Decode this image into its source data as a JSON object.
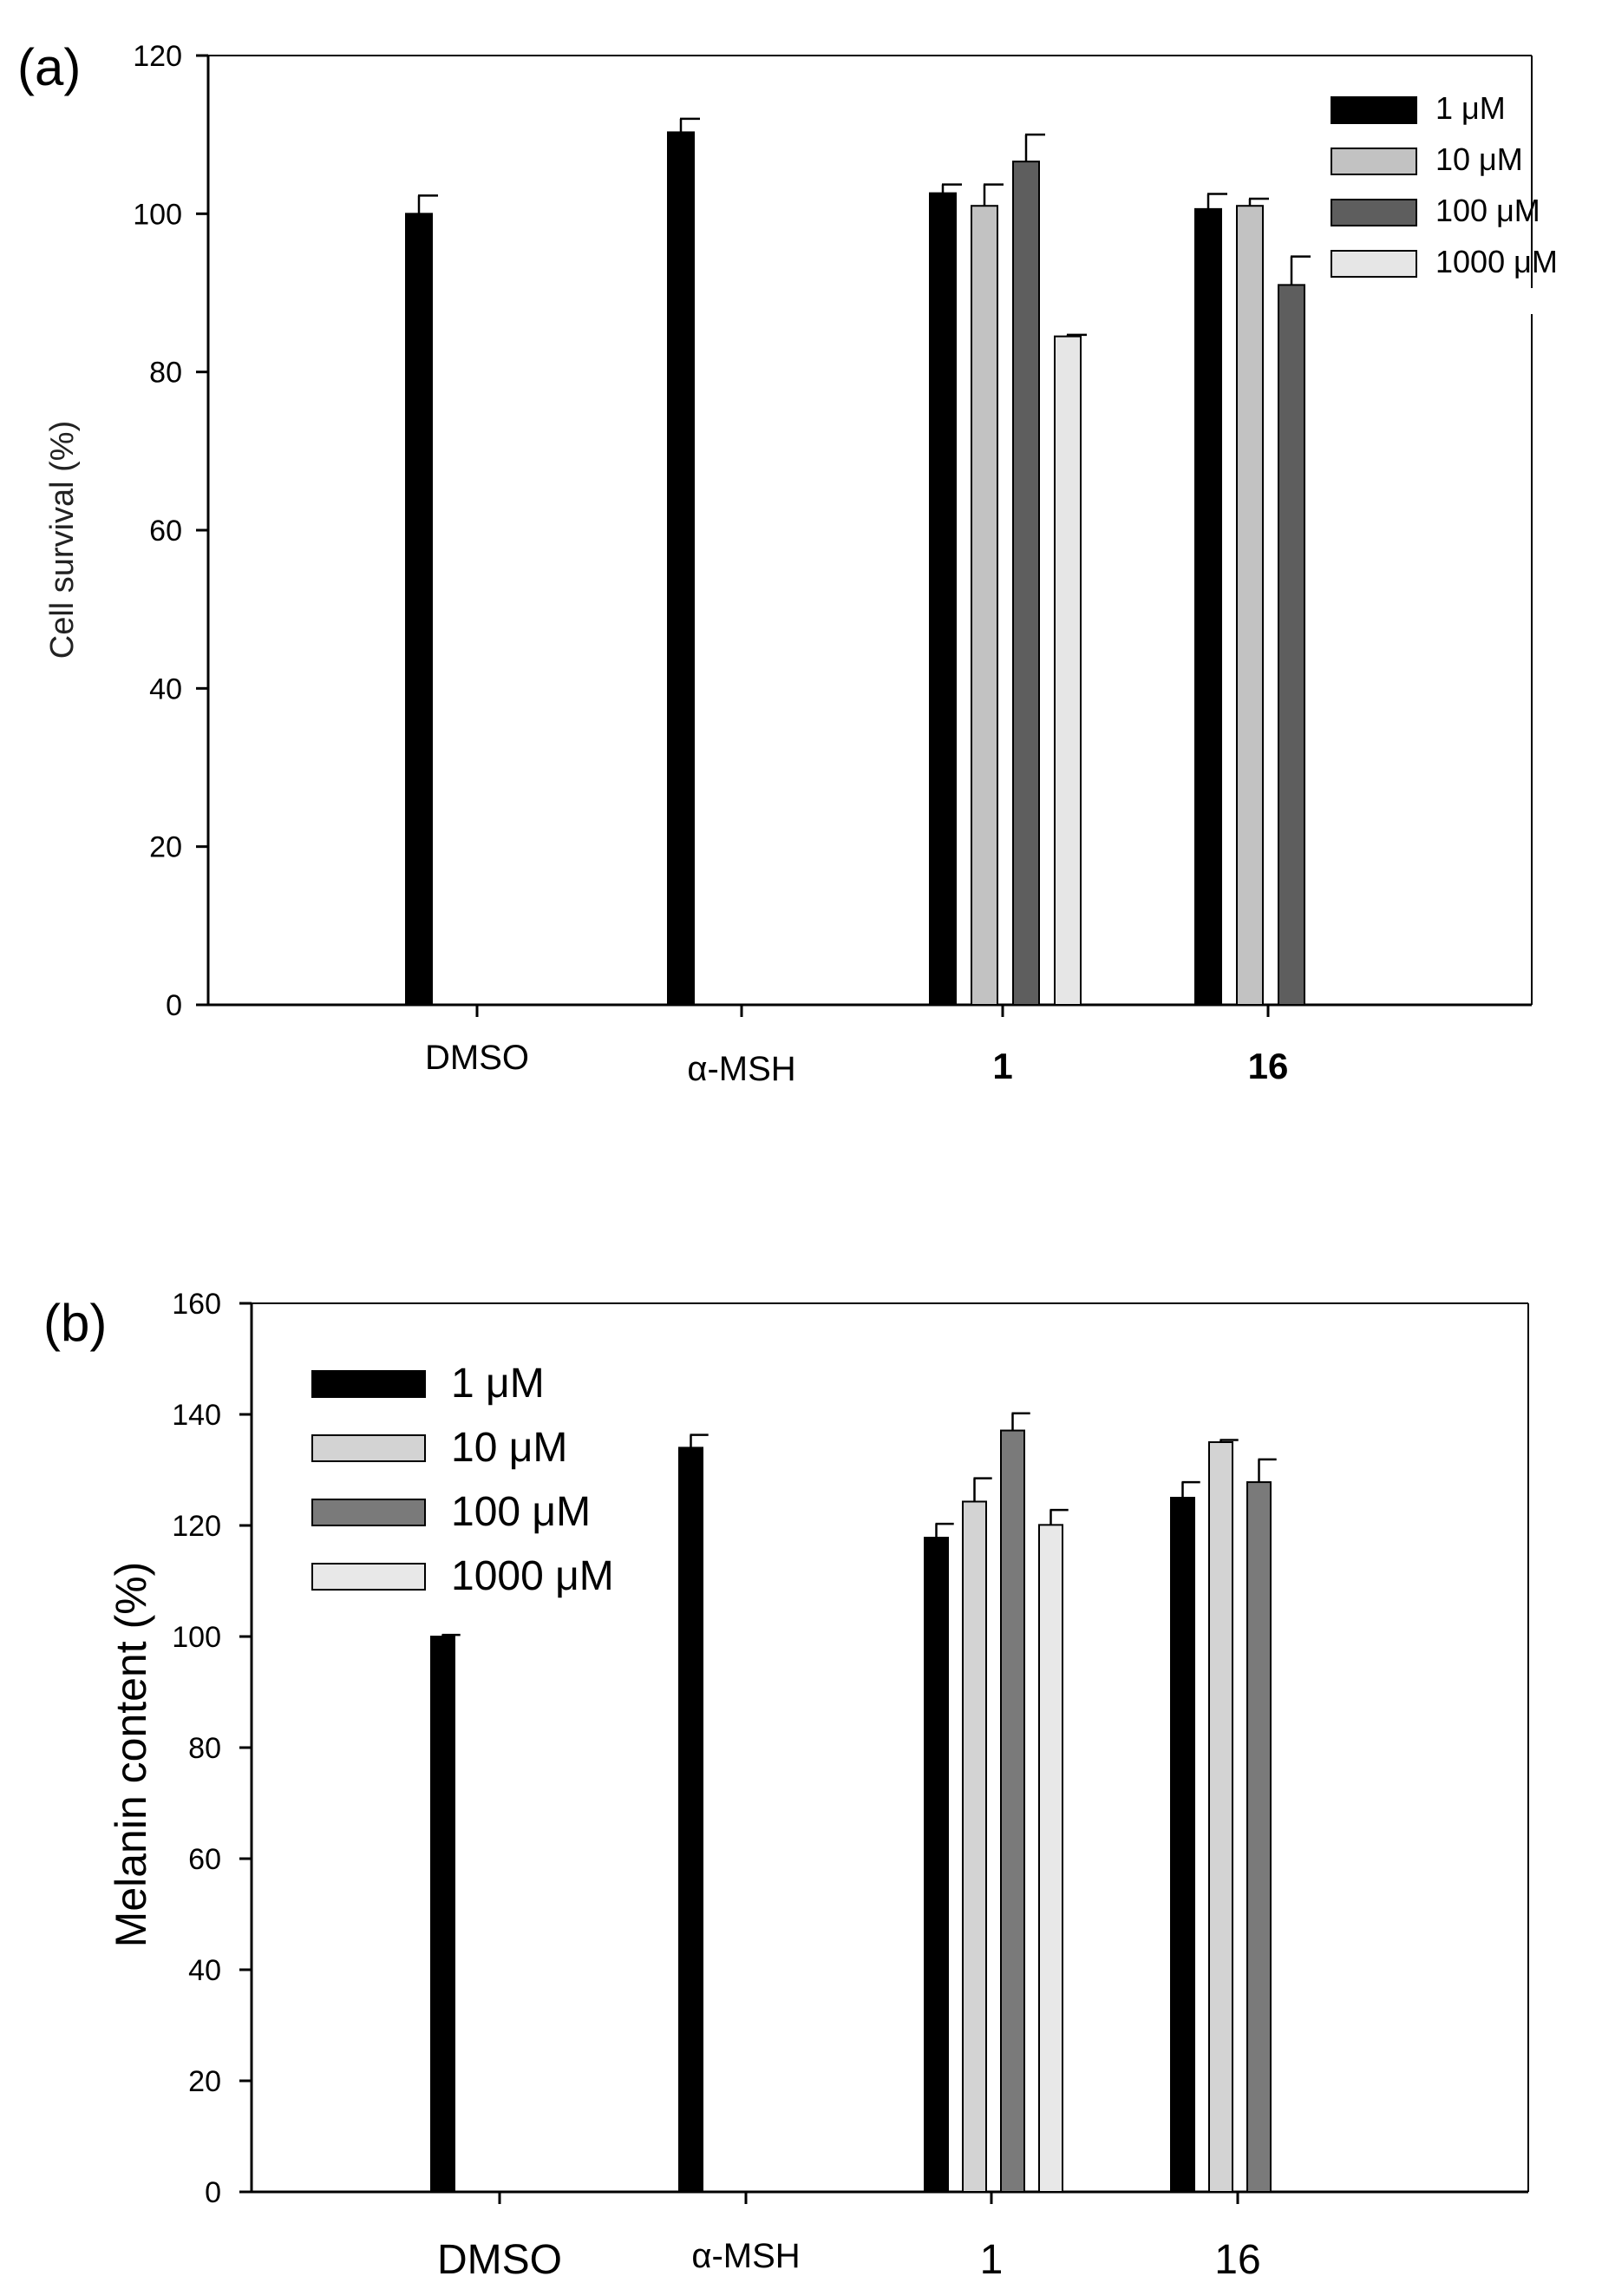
{
  "chart_data": [
    {
      "panel": "(a)",
      "type": "bar",
      "ylabel": "Cell survival (%)",
      "ylim": [
        0,
        120
      ],
      "yticks": [
        0,
        20,
        40,
        60,
        80,
        100,
        120
      ],
      "categories": [
        "DMSO",
        "α-MSH",
        "1",
        "16"
      ],
      "bold_categories": [
        "1",
        "16"
      ],
      "legend_position": "top-right",
      "series": [
        {
          "name": "1 μM",
          "color": "#000000",
          "values": [
            100.0,
            110.3,
            102.6,
            100.6
          ],
          "errors": [
            2.3,
            1.7,
            1.1,
            1.9
          ]
        },
        {
          "name": "10 μM",
          "color": "#c2c2c2",
          "values": [
            null,
            null,
            101.0,
            101.0
          ],
          "errors": [
            null,
            null,
            2.7,
            0.9
          ]
        },
        {
          "name": "100 μM",
          "color": "#5e5e5e",
          "values": [
            null,
            null,
            106.6,
            91.0
          ],
          "errors": [
            null,
            null,
            3.4,
            3.6
          ]
        },
        {
          "name": "1000 μM",
          "color": "#e6e6e6",
          "values": [
            null,
            null,
            84.5,
            null
          ],
          "errors": [
            null,
            null,
            0.2,
            null
          ]
        }
      ]
    },
    {
      "panel": "(b)",
      "type": "bar",
      "ylabel": "Melanin content (%)",
      "ylim": [
        0,
        160
      ],
      "yticks": [
        0,
        20,
        40,
        60,
        80,
        100,
        120,
        140,
        160
      ],
      "categories": [
        "DMSO",
        "α-MSH",
        "1",
        "16"
      ],
      "bold_categories": [],
      "legend_position": "top-left",
      "series": [
        {
          "name": "1 μM",
          "color": "#000000",
          "values": [
            100.0,
            134.0,
            117.8,
            125.0
          ],
          "errors": [
            0.3,
            2.3,
            2.5,
            2.8
          ]
        },
        {
          "name": "10 μM",
          "color": "#d3d3d3",
          "values": [
            null,
            null,
            124.3,
            135.0
          ],
          "errors": [
            null,
            null,
            4.2,
            0.4
          ]
        },
        {
          "name": "100 μM",
          "color": "#7a7a7a",
          "values": [
            null,
            null,
            137.1,
            127.8
          ],
          "errors": [
            null,
            null,
            3.1,
            4.1
          ]
        },
        {
          "name": "1000 μM",
          "color": "#e8e8e8",
          "values": [
            null,
            null,
            120.1,
            null
          ],
          "errors": [
            null,
            null,
            2.7,
            null
          ]
        }
      ]
    }
  ]
}
